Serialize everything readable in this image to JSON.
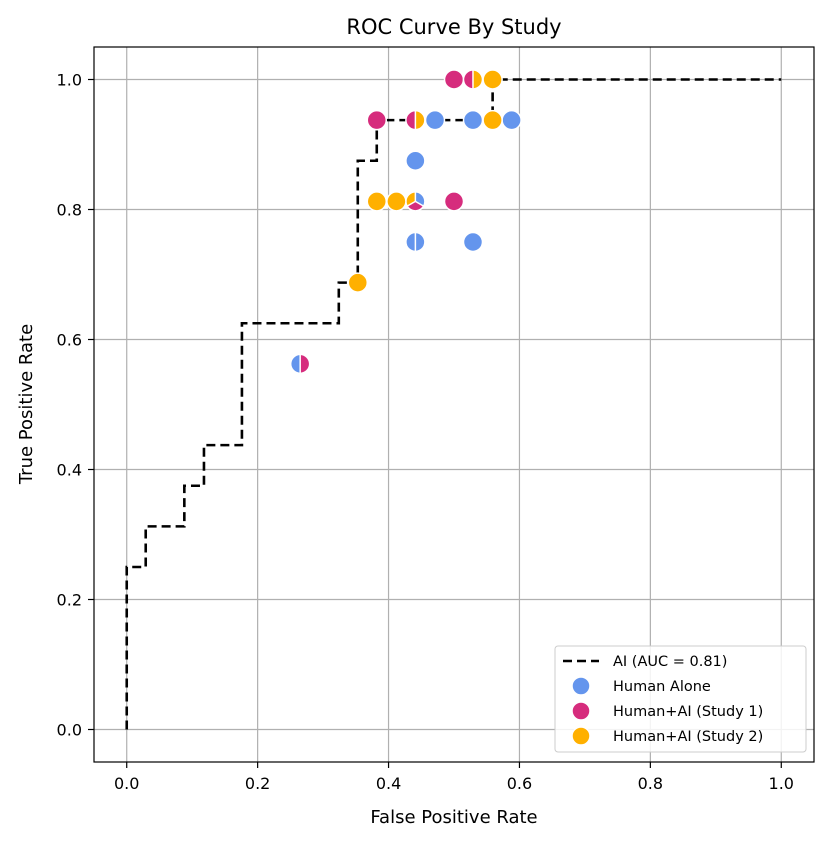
{
  "chart_data": {
    "type": "scatter",
    "title": "ROC Curve By Study",
    "xlabel": "False Positive Rate",
    "ylabel": "True Positive Rate",
    "xlim": [
      -0.05,
      1.05
    ],
    "ylim": [
      -0.05,
      1.05
    ],
    "xticks": [
      0.0,
      0.2,
      0.4,
      0.6,
      0.8,
      1.0
    ],
    "yticks": [
      0.0,
      0.2,
      0.4,
      0.6,
      0.8,
      1.0
    ],
    "xtick_labels": [
      "0.0",
      "0.2",
      "0.4",
      "0.6",
      "0.8",
      "1.0"
    ],
    "ytick_labels": [
      "0.0",
      "0.2",
      "0.4",
      "0.6",
      "0.8",
      "1.0"
    ],
    "grid": true,
    "legend_position": "lower-right",
    "colors": {
      "ai": "#000000",
      "human_alone": "#6495ED",
      "study1": "#D62C7D",
      "study2": "#FFB000"
    },
    "ai_curve": {
      "name": "AI (AUC = 0.81)",
      "style": "dashed",
      "x": [
        0.0,
        0.0,
        0.029,
        0.029,
        0.088,
        0.088,
        0.118,
        0.118,
        0.176,
        0.176,
        0.324,
        0.324,
        0.353,
        0.353,
        0.382,
        0.382,
        0.559,
        0.559,
        1.0
      ],
      "y": [
        0.0,
        0.25,
        0.25,
        0.3125,
        0.3125,
        0.375,
        0.375,
        0.4375,
        0.4375,
        0.625,
        0.625,
        0.6875,
        0.6875,
        0.875,
        0.875,
        0.9375,
        0.9375,
        1.0,
        1.0
      ]
    },
    "series": [
      {
        "name": "Human Alone",
        "color_key": "human_alone",
        "points": [
          {
            "x": 0.265,
            "y": 0.5625
          },
          {
            "x": 0.441,
            "y": 0.75
          },
          {
            "x": 0.529,
            "y": 0.75
          },
          {
            "x": 0.441,
            "y": 0.875
          },
          {
            "x": 0.441,
            "y": 0.8125
          },
          {
            "x": 0.441,
            "y": 0.9375
          },
          {
            "x": 0.471,
            "y": 0.9375
          },
          {
            "x": 0.529,
            "y": 0.9375
          },
          {
            "x": 0.588,
            "y": 0.9375
          }
        ]
      },
      {
        "name": "Human+AI (Study 1)",
        "color_key": "study1",
        "points": [
          {
            "x": 0.265,
            "y": 0.5625
          },
          {
            "x": 0.382,
            "y": 0.9375
          },
          {
            "x": 0.441,
            "y": 0.9375
          },
          {
            "x": 0.441,
            "y": 0.8125
          },
          {
            "x": 0.5,
            "y": 0.8125
          },
          {
            "x": 0.5,
            "y": 1.0
          },
          {
            "x": 0.529,
            "y": 1.0
          }
        ]
      },
      {
        "name": "Human+AI (Study 2)",
        "color_key": "study2",
        "points": [
          {
            "x": 0.353,
            "y": 0.6875
          },
          {
            "x": 0.382,
            "y": 0.8125
          },
          {
            "x": 0.412,
            "y": 0.8125
          },
          {
            "x": 0.441,
            "y": 0.8125
          },
          {
            "x": 0.441,
            "y": 0.9375
          },
          {
            "x": 0.559,
            "y": 0.9375
          },
          {
            "x": 0.529,
            "y": 1.0
          },
          {
            "x": 0.559,
            "y": 1.0
          }
        ]
      }
    ],
    "shared_markers": [
      {
        "x": 0.265,
        "y": 0.5625,
        "parts": [
          "human_alone",
          "study1"
        ]
      },
      {
        "x": 0.441,
        "y": 0.75,
        "parts": [
          "human_alone",
          "human_alone"
        ]
      },
      {
        "x": 0.441,
        "y": 0.9375,
        "parts": [
          "study1",
          "study2"
        ]
      },
      {
        "x": 0.441,
        "y": 0.8125,
        "parts": [
          "human_alone",
          "study1",
          "study2"
        ]
      },
      {
        "x": 0.529,
        "y": 1.0,
        "parts": [
          "study1",
          "study2"
        ]
      }
    ],
    "legend": [
      {
        "label": "AI (AUC = 0.81)",
        "kind": "line",
        "color_key": "ai"
      },
      {
        "label": "Human Alone",
        "kind": "marker",
        "color_key": "human_alone"
      },
      {
        "label": "Human+AI (Study 1)",
        "kind": "marker",
        "color_key": "study1"
      },
      {
        "label": "Human+AI (Study 2)",
        "kind": "marker",
        "color_key": "study2"
      }
    ]
  }
}
